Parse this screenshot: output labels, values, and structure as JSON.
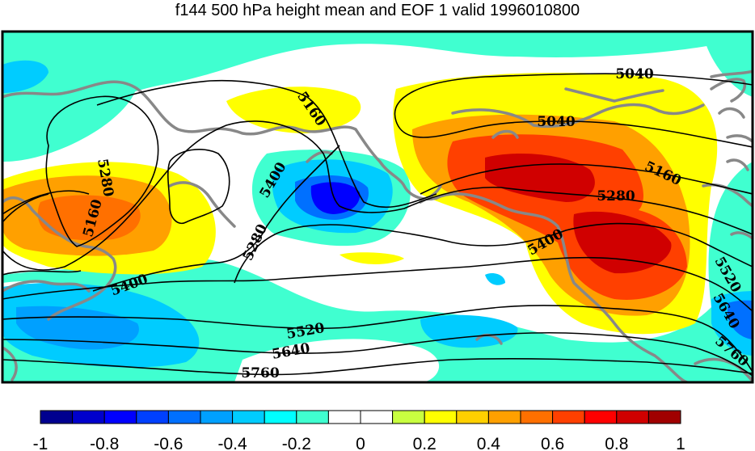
{
  "chart_data": {
    "type": "heatmap",
    "title": "f144 500 hPa height mean and EOF 1 valid 1996010800",
    "colorbar": {
      "vmin": -1,
      "vmax": 1,
      "tick_labels": [
        "-1",
        "-0.8",
        "-0.6",
        "-0.4",
        "-0.2",
        "0",
        "0.2",
        "0.4",
        "0.6",
        "0.8",
        "1"
      ],
      "colors": [
        "#00008f",
        "#0000cc",
        "#0000ff",
        "#0040ff",
        "#0070ff",
        "#00a0ff",
        "#00ccff",
        "#00ffff",
        "#40ffd0",
        "#ffffff",
        "#ffffff",
        "#c8ff40",
        "#ffff00",
        "#ffd000",
        "#ffa000",
        "#ff7000",
        "#ff4000",
        "#ff0000",
        "#d00000",
        "#a00000"
      ]
    },
    "contour_labels": [
      {
        "text": "5040",
        "x": 5040
      },
      {
        "text": "5040",
        "x": 5040
      },
      {
        "text": "5160",
        "x": 5160
      },
      {
        "text": "5160",
        "x": 5160
      },
      {
        "text": "5160",
        "x": 5160
      },
      {
        "text": "5280",
        "x": 5280
      },
      {
        "text": "5280",
        "x": 5280
      },
      {
        "text": "5280",
        "x": 5280
      },
      {
        "text": "5400",
        "x": 5400
      },
      {
        "text": "5400",
        "x": 5400
      },
      {
        "text": "5400",
        "x": 5400
      },
      {
        "text": "5520",
        "x": 5520
      },
      {
        "text": "5520",
        "x": 5520
      },
      {
        "text": "5640",
        "x": 5640
      },
      {
        "text": "5640",
        "x": 5640
      },
      {
        "text": "5760",
        "x": 5760
      },
      {
        "text": "5760",
        "x": 5760
      }
    ],
    "contour_levels": [
      5040,
      5160,
      5280,
      5400,
      5520,
      5640,
      5760
    ],
    "grid": false
  }
}
